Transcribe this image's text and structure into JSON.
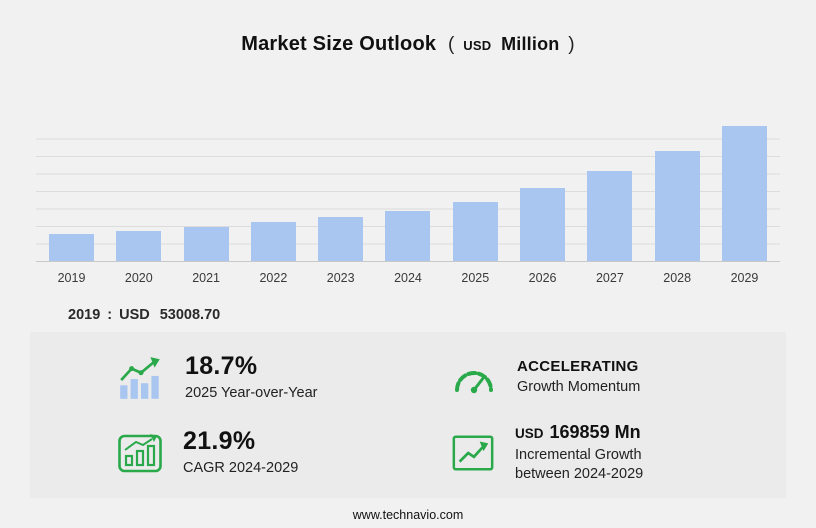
{
  "header": {
    "title": "Market Size Outlook",
    "unit": {
      "open": "(",
      "currency": "USD",
      "word": "Million",
      "close": ")"
    }
  },
  "chart_data": {
    "type": "bar",
    "title": "Market Size Outlook (USD Million)",
    "categories": [
      "2019",
      "2020",
      "2021",
      "2022",
      "2023",
      "2024",
      "2025",
      "2026",
      "2027",
      "2028",
      "2029"
    ],
    "values": [
      53008.7,
      60220,
      68410,
      77700,
      88250,
      100230,
      118970,
      146040,
      179270,
      220060,
      270090
    ],
    "xlabel": "",
    "ylabel": "",
    "ylim": [
      0,
      280000
    ],
    "grid": "horizontal",
    "legend": "none",
    "annotation": "2019 : USD 53008.70"
  },
  "baseline": {
    "year": "2019",
    "separator": ":",
    "currency": "USD",
    "value": "53008.70"
  },
  "stats": [
    {
      "icon": "bar-chart-growth-icon",
      "value": "18.7%",
      "label": "2025 Year-over-Year"
    },
    {
      "icon": "speedometer-icon",
      "value": "ACCELERATING",
      "label": "Growth Momentum"
    },
    {
      "icon": "cagr-chart-icon",
      "value": "21.9%",
      "label": "CAGR 2024-2029"
    },
    {
      "icon": "incremental-growth-icon",
      "value_prefix": "USD",
      "value": "169859 Mn",
      "label": "Incremental Growth",
      "label2": "between 2024-2029"
    }
  ],
  "footer": {
    "url": "www.technavio.com"
  },
  "colors": {
    "accent_green": "#2aa94b",
    "bar_fill": "#a9c6f1",
    "background": "#f1f1f1",
    "panel": "#ebebeb"
  }
}
